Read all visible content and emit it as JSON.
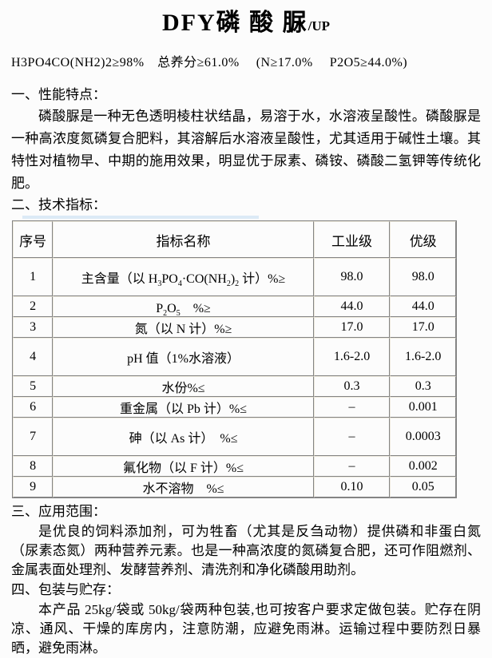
{
  "title": {
    "main": "DFY磷 酸 脲",
    "suffix": "/UP"
  },
  "formula": "H3PO4CO(NH2)2≥98%　总养分≥61.0%　 (N≥17.0%　 P2O5≥44.0%)",
  "sections": {
    "s1": {
      "heading": "一、性能特点：",
      "body": "磷酸脲是一种无色透明棱柱状结晶，易溶于水，水溶液呈酸性。磷酸脲是一种高浓度氮磷复合肥料，其溶解后水溶液呈酸性，尤其适用于碱性土壤。其特性对植物早、中期的施用效果，明显优于尿素、磷铵、磷酸二氢钾等传统化肥。"
    },
    "s2": {
      "heading": "二、技术指标："
    },
    "s3": {
      "heading": "三、应用范围：",
      "body": "是优良的饲料添加剂，可为牲畜（尤其是反刍动物）提供磷和非蛋白氮（尿素态氮）两种营养元素。也是一种高浓度的氮磷复合肥，还可作阻燃剂、金属表面处理剂、发酵营养剂、清洗剂和净化磷酸用助剂。"
    },
    "s4": {
      "heading": "四、包装与贮存：",
      "body": "本产品 25kg/袋或 50kg/袋两种包装,也可按客户要求定做包装。贮存在阴凉、通风、干燥的库房内，注意防潮，应避免雨淋。运输过程中要防烈日暴晒，避免雨淋。"
    }
  },
  "table": {
    "headers": [
      "序号",
      "指标名称",
      "工业级",
      "优级"
    ],
    "rows": [
      {
        "no": "1",
        "name": [
          {
            "t": "主含量（以 H"
          },
          {
            "t": "3",
            "sub": true
          },
          {
            "t": "PO"
          },
          {
            "t": "4",
            "sub": true
          },
          {
            "t": "·CO(NH"
          },
          {
            "t": "2",
            "sub": true
          },
          {
            "t": ")"
          },
          {
            "t": "2",
            "sub": true
          },
          {
            "t": " 计）%≥"
          }
        ],
        "industrial": "98.0",
        "premium": "98.0",
        "tall": true
      },
      {
        "no": "2",
        "name": [
          {
            "t": "P"
          },
          {
            "t": "2",
            "sub": true
          },
          {
            "t": "O"
          },
          {
            "t": "5",
            "sub": true
          },
          {
            "t": "　%≥"
          }
        ],
        "industrial": "44.0",
        "premium": "44.0"
      },
      {
        "no": "3",
        "name": "氮（以 N 计）%≥",
        "industrial": "17.0",
        "premium": "17.0"
      },
      {
        "no": "4",
        "name": "pH 值（1%水溶液）",
        "industrial": "1.6-2.0",
        "premium": "1.6-2.0",
        "tall": true
      },
      {
        "no": "5",
        "name": "水份%≤",
        "industrial": "0.3",
        "premium": "0.3"
      },
      {
        "no": "6",
        "name": "重金属（以 Pb 计）%≤",
        "industrial": "–",
        "premium": "0.001"
      },
      {
        "no": "7",
        "name": "砷（以 As 计）　%≤",
        "industrial": "–",
        "premium": "0.0003",
        "tall": true
      },
      {
        "no": "8",
        "name": "氟化物（以 F 计）%≤",
        "industrial": "–",
        "premium": "0.002"
      },
      {
        "no": "9",
        "name": "水不溶物　%≤",
        "industrial": "0.10",
        "premium": "0.05"
      }
    ]
  },
  "colors": {
    "table_border_dark": "#848484",
    "table_border_light": "#ece8dc",
    "highlight_blue": "#dceaf6",
    "text": "#000000",
    "background": "#fcfcfc"
  }
}
